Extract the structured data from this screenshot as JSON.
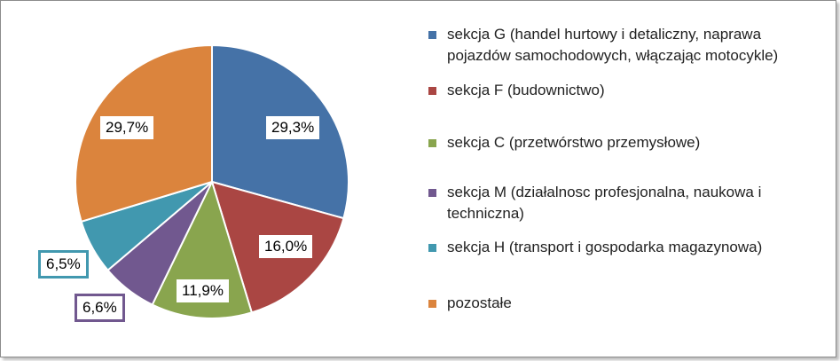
{
  "chart_data": {
    "type": "pie",
    "title": "",
    "slices": [
      {
        "name": "sekcja G (handel hurtowy i detaliczny, naprawa pojazdów samochodowych, włączając motocykle)",
        "value": 29.3,
        "label": "29,3%",
        "color": "#4572A7"
      },
      {
        "name": "sekcja F (budownictwo)",
        "value": 16.0,
        "label": "16,0%",
        "color": "#AA4643"
      },
      {
        "name": "sekcja C (przetwórstwo przemysłowe)",
        "value": 11.9,
        "label": "11,9%",
        "color": "#89A54E"
      },
      {
        "name": "sekcja M (działalnosc profesjonalna, naukowa i techniczna)",
        "value": 6.6,
        "label": "6,6%",
        "color": "#71588F"
      },
      {
        "name": "sekcja H (transport i gospodarka magazynowa)",
        "value": 6.5,
        "label": "6,5%",
        "color": "#4198AF"
      },
      {
        "name": "pozostałe",
        "value": 29.7,
        "label": "29,7%",
        "color": "#DB843D"
      }
    ],
    "legend_position": "right"
  }
}
